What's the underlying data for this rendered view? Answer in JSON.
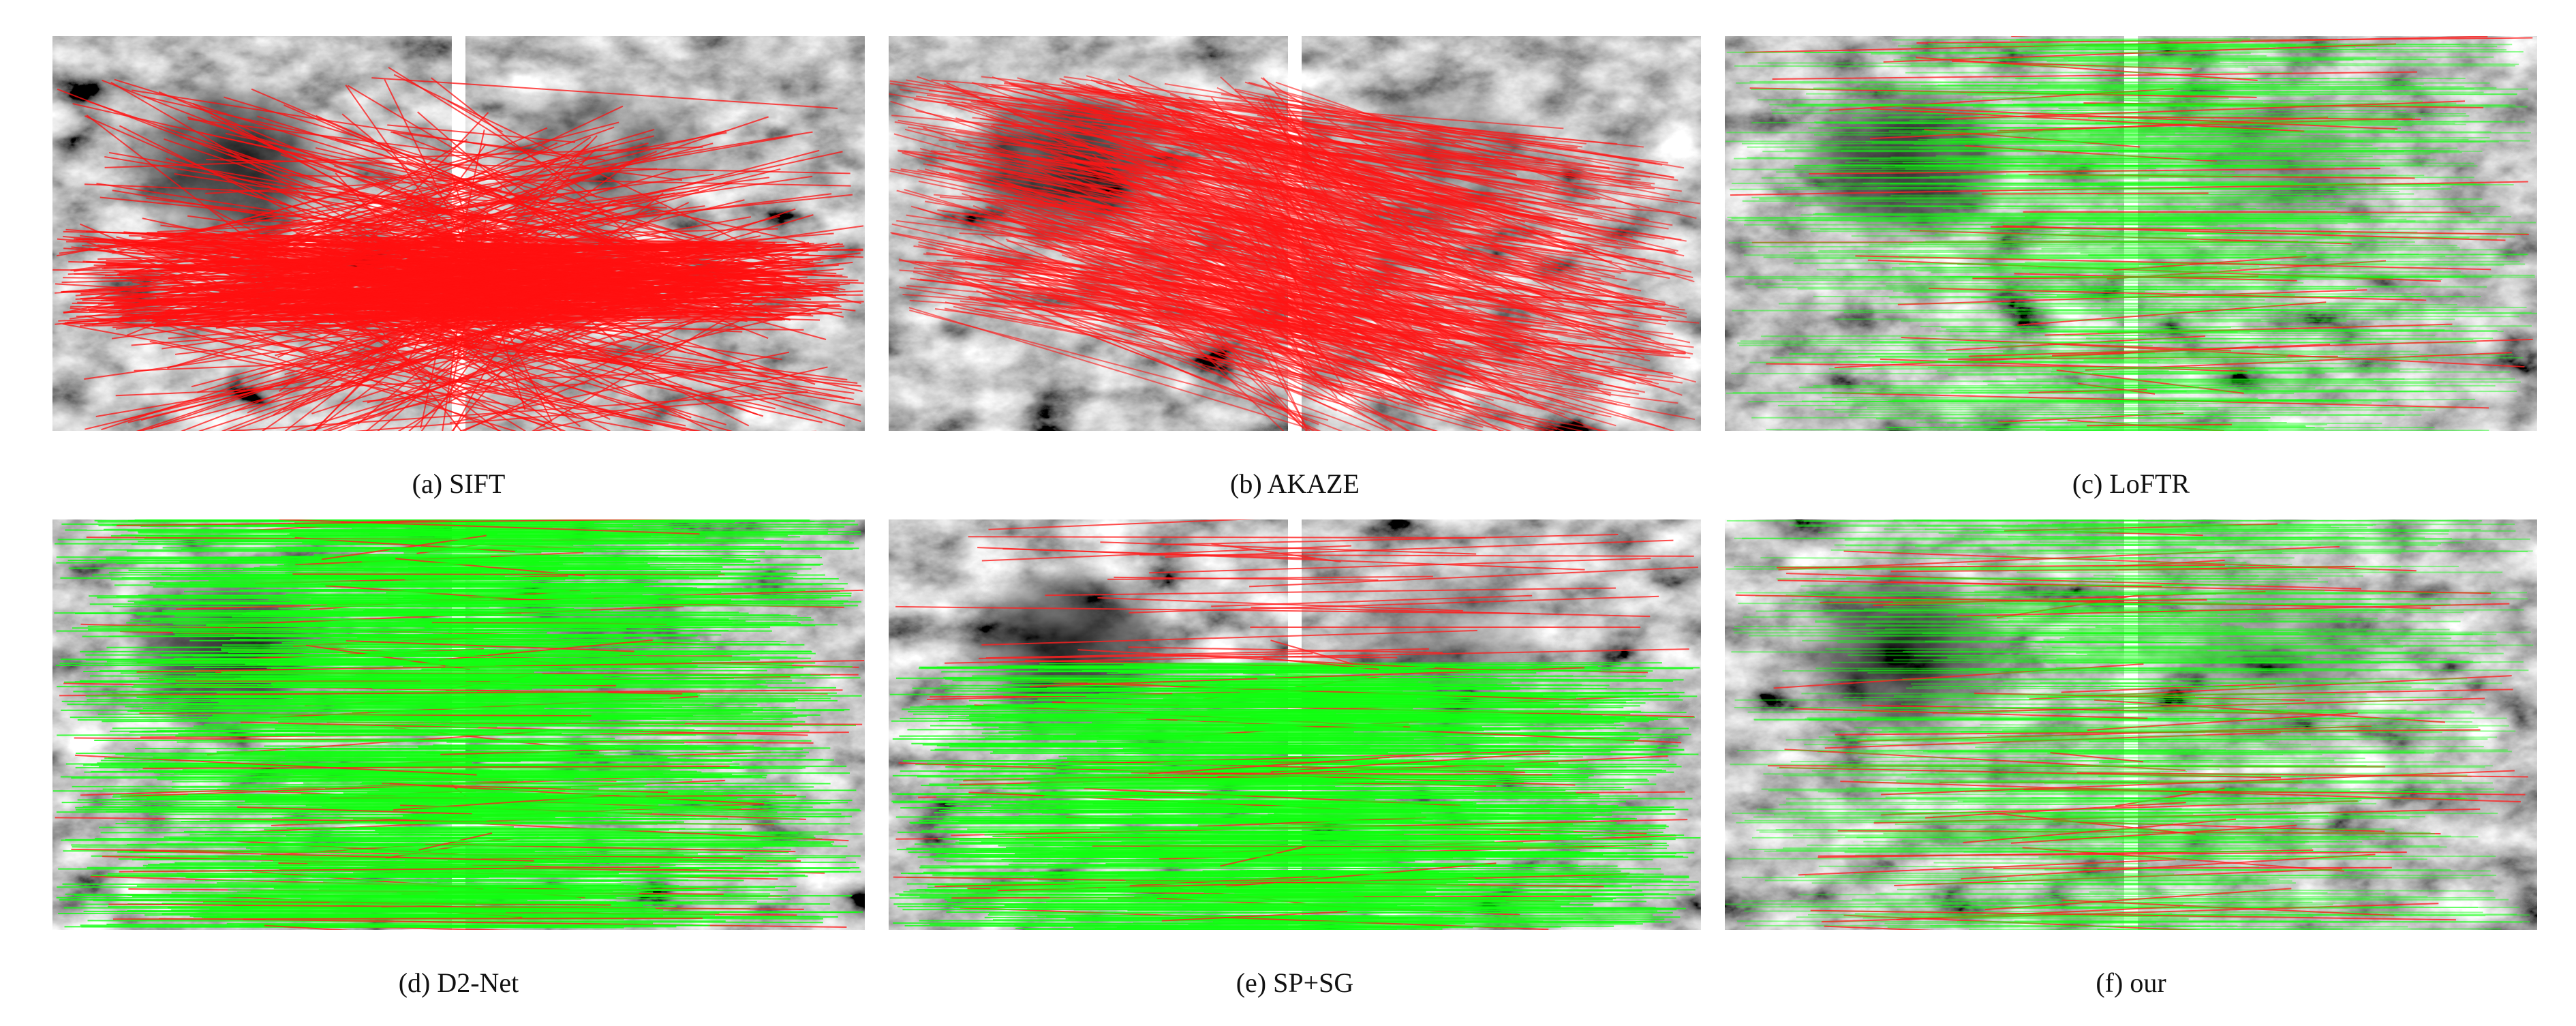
{
  "figure": {
    "panels": [
      {
        "caption": "(a) SIFT"
      },
      {
        "caption": "(b) AKAZE"
      },
      {
        "caption": "(c) LoFTR"
      },
      {
        "caption": "(d) D2-Net"
      },
      {
        "caption": "(e) SP+SG"
      },
      {
        "caption": "(f) our"
      }
    ]
  }
}
